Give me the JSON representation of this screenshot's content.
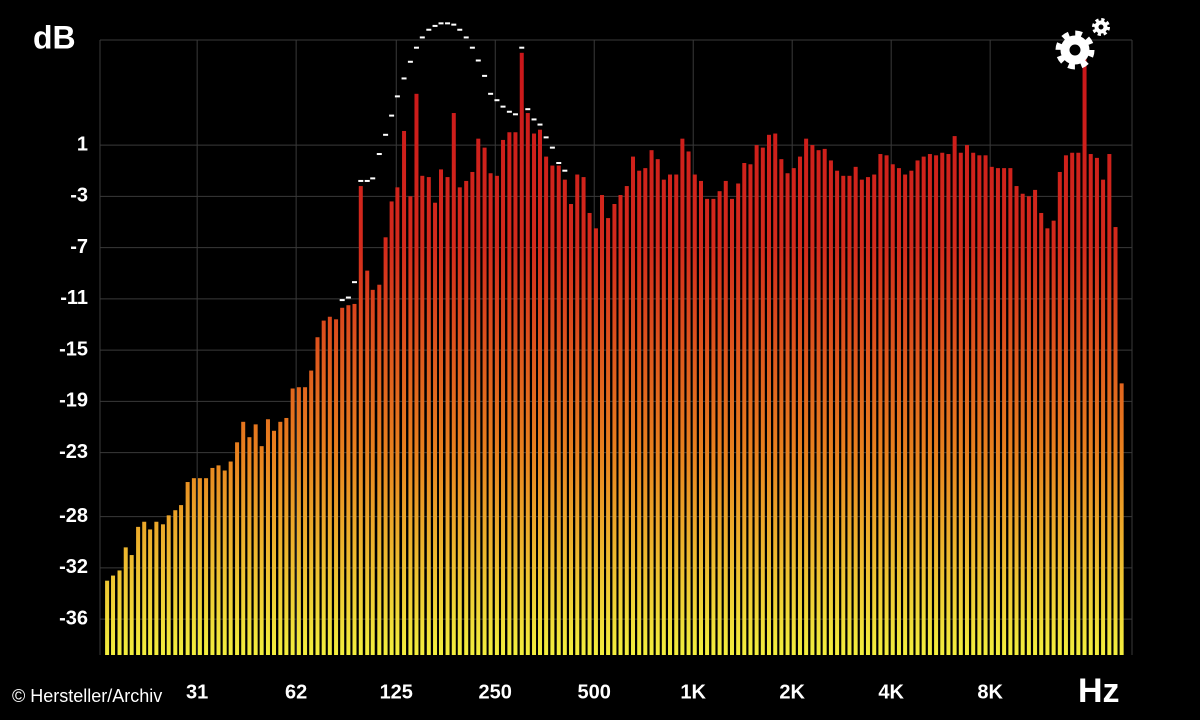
{
  "chart_data": {
    "type": "bar",
    "y_label": "dB",
    "x_label": "Hz",
    "credit": "© Hersteller/Archiv",
    "log_x": true,
    "grid": true,
    "xlim": [
      15.7,
      21600
    ],
    "ylim": [
      -38.8,
      9.2
    ],
    "xticks": [
      31,
      62,
      125,
      250,
      500,
      {
        "value": 1000,
        "label": "1K"
      },
      {
        "value": 2000,
        "label": "2K"
      },
      {
        "value": 4000,
        "label": "4K"
      },
      {
        "value": 8000,
        "label": "8K"
      }
    ],
    "yticks": [
      1,
      -3,
      -7,
      -11,
      -15,
      -19,
      -23,
      -28,
      -32,
      -36
    ],
    "gradient": [
      "#f2ee3e",
      "#e8801e",
      "#d42a1c",
      "#c8141a"
    ],
    "peak_color": "#ffffff",
    "x": [
      16.5,
      17.2,
      18,
      18.8,
      19.6,
      20.5,
      21.4,
      22.3,
      23.3,
      24.4,
      25.4,
      26.6,
      27.7,
      29,
      30.3,
      31.6,
      33,
      34.5,
      36,
      37.6,
      39.2,
      41,
      42.8,
      44.7,
      46.7,
      48.7,
      50.9,
      53.1,
      55.5,
      57.9,
      60.5,
      63.2,
      66,
      68.9,
      72,
      75.2,
      78.5,
      82,
      85.6,
      89.4,
      93.3,
      97.5,
      102,
      106,
      111,
      116,
      121,
      126,
      132,
      138,
      144,
      150,
      157,
      164,
      171,
      179,
      187,
      195,
      204,
      213,
      222,
      232,
      242,
      253,
      264,
      276,
      288,
      301,
      314,
      328,
      342,
      357,
      373,
      390,
      407,
      425,
      444,
      464,
      484,
      506,
      528,
      551,
      576,
      601,
      628,
      656,
      685,
      715,
      747,
      780,
      814,
      850,
      888,
      927,
      968,
      1011,
      1056,
      1102,
      1152,
      1203,
      1256,
      1312,
      1370,
      1430,
      1493,
      1559,
      1628,
      1700,
      1776,
      1854,
      1936,
      2022,
      2112,
      2205,
      2304,
      2406,
      2511,
      2623,
      2739,
      2860,
      2987,
      3119,
      3257,
      3400,
      3552,
      3709,
      3873,
      4044,
      4224,
      4410,
      4608,
      4811,
      5022,
      5246,
      5478,
      5720,
      5973,
      6238,
      6513,
      6801,
      7104,
      7417,
      7746,
      8089,
      8448,
      8820,
      9216,
      9622,
      10045,
      10492,
      10957,
      11439,
      11946,
      12477,
      13027,
      13601,
      14208,
      14835,
      15494,
      16179,
      16896,
      17640,
      18432,
      19245,
      20090
    ],
    "values": [
      -33,
      -32.6,
      -32.2,
      -30.4,
      -31,
      -28.8,
      -28.4,
      -29,
      -28.4,
      -28.6,
      -27.9,
      -27.5,
      -27.1,
      -25.3,
      -25,
      -25,
      -25,
      -24.2,
      -24,
      -24.4,
      -23.7,
      -22.2,
      -20.6,
      -21.8,
      -20.8,
      -22.5,
      -20.4,
      -21.3,
      -20.6,
      -20.3,
      -18,
      -17.9,
      -17.9,
      -16.6,
      -14,
      -12.7,
      -12.4,
      -12.6,
      -11.7,
      -11.5,
      -11.4,
      -2.2,
      -8.8,
      -10.3,
      -9.9,
      -6.2,
      -3.4,
      -2.3,
      2.1,
      -3,
      5,
      -1.4,
      -1.5,
      -3.5,
      -0.9,
      -1.5,
      3.5,
      -2.3,
      -1.8,
      -1.1,
      1.5,
      0.8,
      -1.2,
      -1.4,
      1.4,
      2,
      2,
      8.2,
      3.5,
      1.9,
      2.2,
      0.1,
      -0.6,
      -0.6,
      -1.7,
      -3.6,
      -1.3,
      -1.5,
      -4.3,
      -5.5,
      -2.9,
      -4.7,
      -3.6,
      -2.9,
      -2.2,
      0.1,
      -1,
      -0.8,
      0.6,
      -0.1,
      -1.7,
      -1.3,
      -1.3,
      1.5,
      0.5,
      -1.3,
      -1.8,
      -3.2,
      -3.2,
      -2.6,
      -1.8,
      -3.2,
      -2,
      -0.4,
      -0.5,
      1,
      0.8,
      1.8,
      1.9,
      -0.1,
      -1.2,
      -0.8,
      0.1,
      1.5,
      1,
      0.6,
      0.7,
      -0.2,
      -1,
      -1.4,
      -1.4,
      -0.7,
      -1.7,
      -1.5,
      -1.3,
      0.3,
      0.2,
      -0.5,
      -0.8,
      -1.3,
      -1,
      -0.2,
      0.1,
      0.3,
      0.2,
      0.4,
      0.3,
      1.7,
      0.4,
      1,
      0.4,
      0.2,
      0.2,
      -0.7,
      -0.8,
      -0.8,
      -0.8,
      -2.2,
      -2.8,
      -3,
      -2.5,
      -4.3,
      -5.5,
      -4.9,
      -1.1,
      0.2,
      0.4,
      0.4,
      8.6,
      0.3,
      0,
      -1.7,
      0.3,
      -5.4,
      -17.6
    ],
    "peak_values": [
      null,
      null,
      null,
      null,
      null,
      null,
      null,
      null,
      null,
      null,
      null,
      null,
      null,
      null,
      null,
      null,
      null,
      null,
      null,
      null,
      null,
      null,
      null,
      null,
      null,
      null,
      null,
      null,
      null,
      null,
      null,
      null,
      null,
      null,
      null,
      null,
      null,
      null,
      -11.1,
      -10.9,
      -9.7,
      -1.8,
      -1.8,
      -1.6,
      0.3,
      1.8,
      3.3,
      4.8,
      6.2,
      7.5,
      8.6,
      9.4,
      10,
      10.3,
      10.5,
      10.5,
      10.4,
      10,
      9.4,
      8.6,
      7.6,
      6.4,
      5,
      4.5,
      4,
      3.6,
      3.4,
      8.6,
      3.8,
      3,
      2.6,
      1.6,
      0.8,
      -0.4,
      -1,
      null,
      null,
      null,
      null,
      null,
      null,
      null,
      null,
      null,
      null,
      null,
      null,
      null,
      null,
      null,
      null,
      null,
      null,
      null,
      null,
      null,
      null,
      null,
      null,
      null,
      null,
      null,
      null,
      null,
      null,
      null,
      null,
      null,
      null,
      null,
      null,
      null,
      null,
      null,
      null,
      null,
      null,
      null,
      null,
      null,
      null,
      null,
      null,
      null,
      null,
      null,
      null,
      null,
      null,
      null,
      null,
      null,
      null,
      null,
      null,
      null,
      null,
      null,
      null,
      null,
      null,
      null,
      null,
      null,
      null,
      null,
      null,
      null,
      null,
      null,
      null,
      null,
      null,
      null,
      null,
      null,
      null,
      null,
      null,
      null,
      null,
      null,
      null,
      null,
      null
    ]
  }
}
